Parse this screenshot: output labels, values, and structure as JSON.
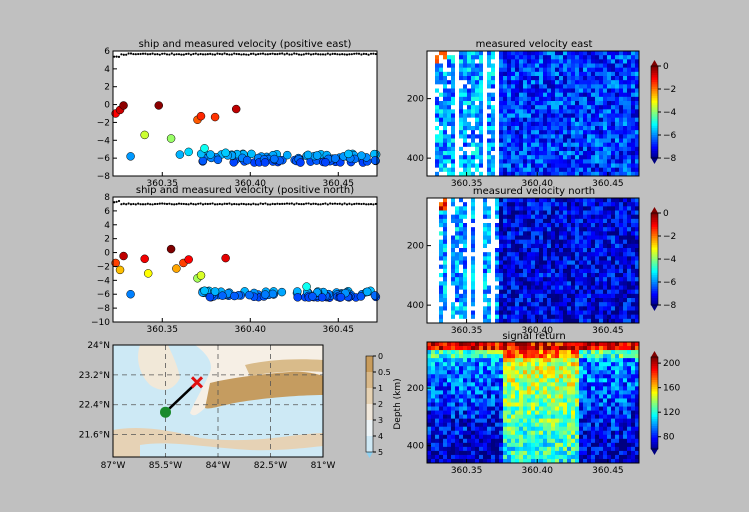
{
  "figure": {
    "background": "#c0c0c0"
  },
  "chart_data": [
    {
      "type": "scatter",
      "title": "ship and  measured velocity (positive east)",
      "xlim": [
        360.322,
        360.472
      ],
      "ylim": [
        -8,
        6
      ],
      "xticks": [
        360.35,
        360.4,
        360.45
      ],
      "xtick_labels": [
        "360.35",
        "360.40",
        "360.45"
      ],
      "yticks": [
        -8,
        -6,
        -4,
        -2,
        0,
        2,
        4,
        6
      ],
      "ytick_labels": [
        "−8",
        "−6",
        "−4",
        "−2",
        "0",
        "2",
        "4",
        "6"
      ],
      "ship_series": {
        "y_start": 5.2,
        "y_plateau": 5.65,
        "y_end": 5.75
      },
      "measured": {
        "x": [
          360.3235,
          360.326,
          360.328,
          360.332,
          360.34,
          360.348,
          360.355,
          360.36,
          360.365,
          360.37,
          360.372,
          360.374,
          360.38,
          360.386,
          360.392
        ],
        "y": [
          -1.0,
          -0.6,
          -0.1,
          -5.8,
          -3.4,
          -0.1,
          -3.8,
          -5.6,
          -5.3,
          -1.7,
          -1.3,
          -4.9,
          -1.4,
          -5.4,
          -0.5
        ],
        "color_scale": [
          -8,
          0
        ]
      }
    },
    {
      "type": "heatmap",
      "title": "measured velocity east",
      "xlim": [
        360.322,
        360.472
      ],
      "ylim": [
        460,
        40
      ],
      "xticks": [
        360.35,
        360.4,
        360.45
      ],
      "xtick_labels": [
        "360.35",
        "360.40",
        "360.45"
      ],
      "yticks": [
        200,
        400
      ],
      "ytick_labels": [
        "200",
        "400"
      ],
      "colorbar": {
        "ticks": [
          0,
          -2,
          -4,
          -6,
          -8
        ],
        "labels": [
          "0",
          "−2",
          "−4",
          "−6",
          "−8"
        ],
        "range": [
          -8,
          0
        ]
      }
    },
    {
      "type": "scatter",
      "title": "ship and  measured velocity (positive north)",
      "xlim": [
        360.322,
        360.472
      ],
      "ylim": [
        -10,
        8
      ],
      "xticks": [
        360.35,
        360.4,
        360.45
      ],
      "xtick_labels": [
        "360.35",
        "360.40",
        "360.45"
      ],
      "yticks": [
        -10,
        -8,
        -6,
        -4,
        -2,
        0,
        2,
        4,
        6,
        8
      ],
      "ytick_labels": [
        "−10",
        "−8",
        "−6",
        "−4",
        "−2",
        "0",
        "2",
        "4",
        "6",
        "8"
      ],
      "ship_series": {
        "y_start": 7.3,
        "y_plateau": 7.0,
        "y_end": 7.0
      },
      "measured": {
        "x": [
          360.3235,
          360.326,
          360.328,
          360.332,
          360.34,
          360.342,
          360.355,
          360.358,
          360.362,
          360.365,
          360.37,
          360.372,
          360.374,
          360.38,
          360.386,
          360.432
        ],
        "y": [
          -1.5,
          -2.5,
          -0.5,
          -6.0,
          -0.9,
          -3.0,
          0.5,
          -2.3,
          -1.5,
          -1.0,
          -3.7,
          -3.3,
          -5.5,
          -5.6,
          -0.8,
          -4.9
        ],
        "color_scale": [
          -8,
          0
        ]
      }
    },
    {
      "type": "heatmap",
      "title": "measured velocity north",
      "xlim": [
        360.322,
        360.472
      ],
      "ylim": [
        460,
        40
      ],
      "xticks": [
        360.35,
        360.4,
        360.45
      ],
      "xtick_labels": [
        "360.35",
        "360.40",
        "360.45"
      ],
      "yticks": [
        200,
        400
      ],
      "ytick_labels": [
        "200",
        "400"
      ],
      "colorbar": {
        "ticks": [
          0,
          -2,
          -4,
          -6,
          -8
        ],
        "labels": [
          "0",
          "−2",
          "−4",
          "−6",
          "−8"
        ],
        "range": [
          -8,
          0
        ]
      }
    },
    {
      "type": "map",
      "xlim": [
        -87,
        -81
      ],
      "ylim": [
        21.0,
        24.0
      ],
      "xticks": [
        -87,
        -85.5,
        -84,
        -82.5,
        -81
      ],
      "xtick_labels": [
        "87°W",
        "85.5°W",
        "84°W",
        "82.5°W",
        "81°W"
      ],
      "yticks": [
        21.6,
        22.4,
        23.2,
        24.0
      ],
      "ytick_labels": [
        "21.6°N",
        "22.4°N",
        "23.2°N",
        "24°N"
      ],
      "track_start": {
        "lon": -85.5,
        "lat": 22.2
      },
      "track_end": {
        "lon": -84.6,
        "lat": 23.0
      },
      "colorbar": {
        "label": "Depth (km)",
        "ticks": [
          0,
          0.5,
          1,
          2,
          3,
          4,
          5
        ],
        "labels": [
          "0",
          "0.5",
          "1",
          "2",
          "3",
          "4",
          "5"
        ]
      }
    },
    {
      "type": "heatmap",
      "title": "signal return",
      "xlim": [
        360.322,
        360.472
      ],
      "ylim": [
        460,
        40
      ],
      "xticks": [
        360.35,
        360.4,
        360.45
      ],
      "xtick_labels": [
        "360.35",
        "360.40",
        "360.45"
      ],
      "yticks": [
        200,
        400
      ],
      "ytick_labels": [
        "200",
        "400"
      ],
      "colorbar": {
        "ticks": [
          200,
          160,
          120,
          80
        ],
        "labels": [
          "200",
          "160",
          "120",
          "80"
        ],
        "range": [
          60,
          210
        ]
      }
    }
  ]
}
